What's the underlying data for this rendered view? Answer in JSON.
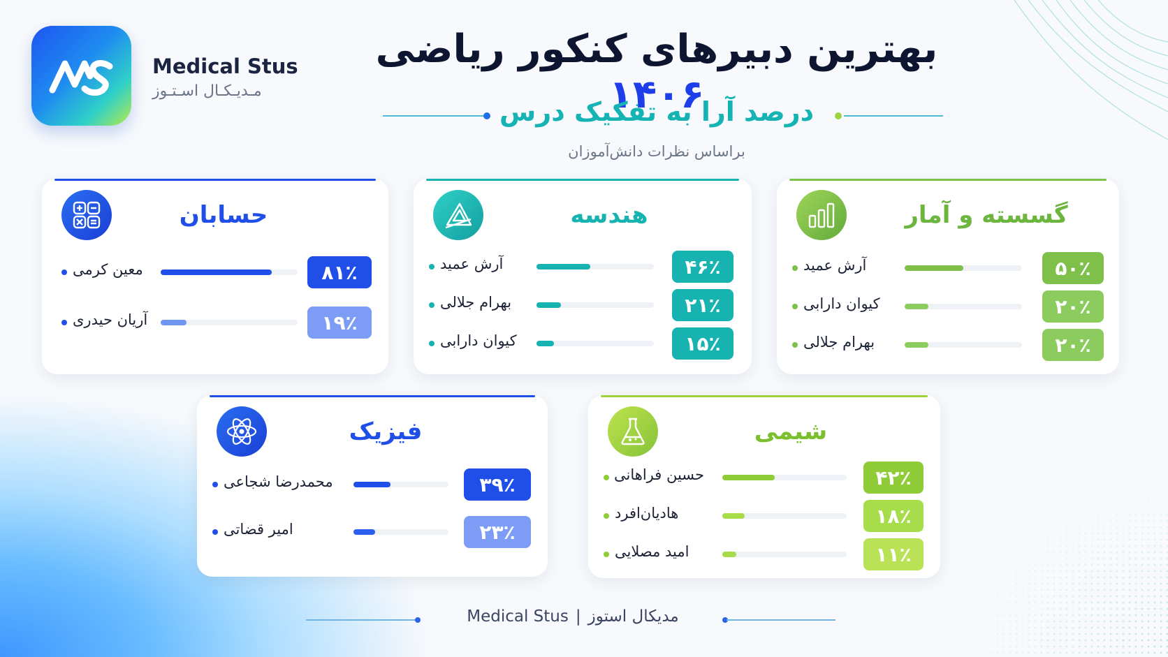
{
  "header": {
    "brand_en": "Medical Stus",
    "brand_fa": "مـدیـکـال اسـتـوز",
    "title_main": "بهترین دبیرهای کنکور ریاضی ",
    "title_year": "۱۴۰۶",
    "subtitle": "درصد آرا به تفکیک درس",
    "caption": "براساس نظرات دانش‌آموزان"
  },
  "colors": {
    "calculus": "#1f4fe8",
    "geometry": "#17b3b0",
    "discrete": "#7ec04a",
    "physics": "#1f4fe8",
    "chemistry": "#9fd23c"
  },
  "chart_data": [
    {
      "type": "bar",
      "title": "حسابان",
      "categories": [
        "معین کرمی",
        "آریان حیدری"
      ],
      "values": [
        81,
        19
      ],
      "labels": [
        "۸۱٪",
        "۱۹٪"
      ],
      "icon": "calculator-icon",
      "ylim": [
        0,
        100
      ]
    },
    {
      "type": "bar",
      "title": "هندسه",
      "categories": [
        "آرش عمید",
        "بهرام جلالی",
        "کیوان دارابی"
      ],
      "values": [
        46,
        21,
        15
      ],
      "labels": [
        "۴۶٪",
        "۲۱٪",
        "۱۵٪"
      ],
      "icon": "set-square-icon",
      "ylim": [
        0,
        100
      ]
    },
    {
      "type": "bar",
      "title": "گسسته و آمار",
      "categories": [
        "آرش عمید",
        "کیوان دارابی",
        "بهرام جلالی"
      ],
      "values": [
        50,
        20,
        20
      ],
      "labels": [
        "۵۰٪",
        "۲۰٪",
        "۲۰٪"
      ],
      "icon": "bar-chart-icon",
      "ylim": [
        0,
        100
      ]
    },
    {
      "type": "bar",
      "title": "فیزیک",
      "categories": [
        "محمدرضا شجاعی",
        "امیر قضاتی"
      ],
      "values": [
        39,
        23
      ],
      "labels": [
        "۳۹٪",
        "۲۳٪"
      ],
      "icon": "atom-icon",
      "ylim": [
        0,
        100
      ]
    },
    {
      "type": "bar",
      "title": "شیمی",
      "categories": [
        "حسین فراهانی",
        "هادیان‌افرد",
        "امید مصلایی"
      ],
      "values": [
        42,
        18,
        11
      ],
      "labels": [
        "۴۲٪",
        "۱۸٪",
        "۱۱٪"
      ],
      "icon": "flask-icon",
      "ylim": [
        0,
        100
      ]
    }
  ],
  "footer": {
    "brand_en": "Medical Stus",
    "separator": "|",
    "brand_fa": "مدیکال استوز"
  }
}
